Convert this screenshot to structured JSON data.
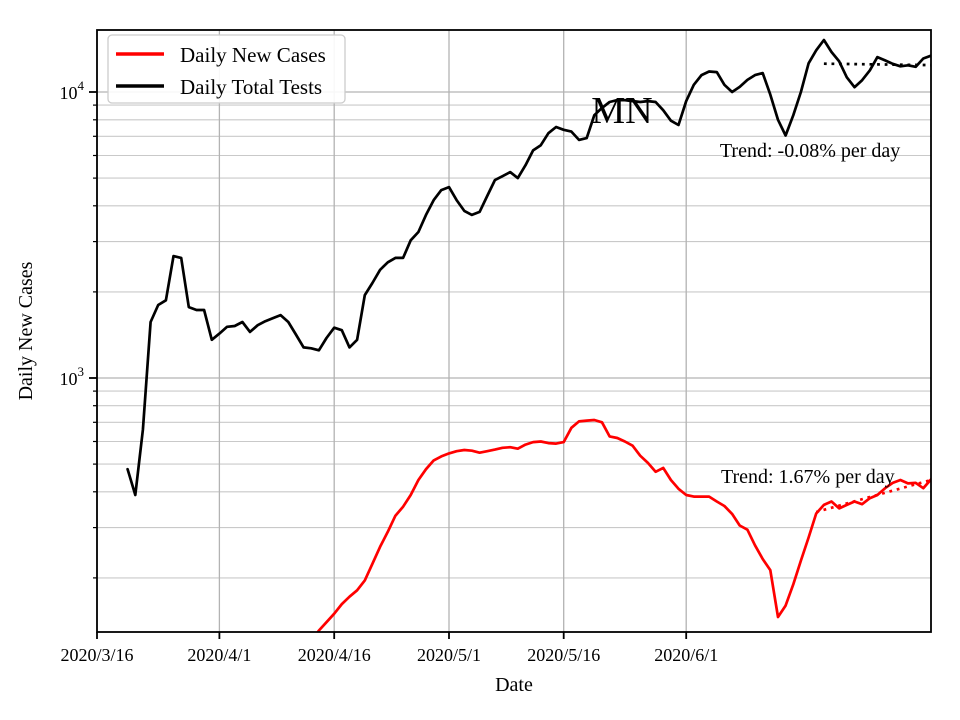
{
  "chart_data": {
    "type": "line",
    "title": "MN",
    "xlabel": "Date",
    "ylabel": "Daily New Cases",
    "yscale": "log",
    "xlim": [
      0,
      109
    ],
    "ylim": [
      129.4,
      16480
    ],
    "x_unit": "days since 2020/3/16",
    "grid": true,
    "legend": {
      "position": "upper-left",
      "entries": [
        {
          "label": "Daily New Cases",
          "color": "#ff0000"
        },
        {
          "label": "Daily Total Tests",
          "color": "#000000"
        }
      ]
    },
    "xticks": [
      {
        "day": 0,
        "label": "2020/3/16"
      },
      {
        "day": 16,
        "label": "2020/4/1"
      },
      {
        "day": 31,
        "label": "2020/4/16"
      },
      {
        "day": 46,
        "label": "2020/5/1"
      },
      {
        "day": 61,
        "label": "2020/5/16"
      },
      {
        "day": 77,
        "label": "2020/6/1"
      }
    ],
    "yticks_major": [
      {
        "value": 1000,
        "mantissa": "10",
        "exponent": "3"
      },
      {
        "value": 10000,
        "mantissa": "10",
        "exponent": "4"
      }
    ],
    "yticks_minor": [
      200,
      300,
      400,
      500,
      600,
      700,
      800,
      900,
      2000,
      3000,
      4000,
      5000,
      6000,
      7000,
      8000,
      9000
    ],
    "series": [
      {
        "name": "Daily Total Tests",
        "color": "#000000",
        "start_day": 4,
        "values": [
          480,
          390,
          660,
          1570,
          1800,
          1870,
          2670,
          2630,
          1770,
          1730,
          1730,
          1360,
          1430,
          1510,
          1520,
          1570,
          1450,
          1530,
          1580,
          1620,
          1660,
          1570,
          1420,
          1280,
          1270,
          1250,
          1380,
          1500,
          1470,
          1280,
          1360,
          1950,
          2150,
          2390,
          2540,
          2630,
          2630,
          3030,
          3240,
          3720,
          4190,
          4540,
          4650,
          4190,
          3840,
          3720,
          3810,
          4330,
          4920,
          5080,
          5250,
          5000,
          5550,
          6250,
          6520,
          7180,
          7550,
          7380,
          7270,
          6800,
          6900,
          8300,
          8800,
          9230,
          9370,
          9370,
          9300,
          9230,
          9300,
          9230,
          8640,
          7940,
          7670,
          9300,
          10600,
          11460,
          11800,
          11740,
          10600,
          10000,
          10420,
          11030,
          11460,
          11650,
          9800,
          8000,
          7050,
          8300,
          10000,
          12600,
          14000,
          15200,
          13800,
          12800,
          11260,
          10400,
          11000,
          11900,
          13250,
          12900,
          12550,
          12300,
          12400,
          12250,
          13100,
          13400
        ]
      },
      {
        "name": "Daily New Cases",
        "color": "#ff0000",
        "start_day": 28,
        "values": [
          120,
          131,
          140,
          150,
          162,
          172,
          181,
          196,
          224,
          257,
          290,
          330,
          355,
          390,
          440,
          480,
          515,
          532,
          545,
          555,
          560,
          557,
          548,
          555,
          562,
          570,
          573,
          566,
          585,
          597,
          600,
          592,
          590,
          597,
          670,
          705,
          710,
          713,
          700,
          625,
          617,
          600,
          580,
          535,
          505,
          470,
          485,
          440,
          410,
          390,
          385,
          385,
          385,
          370,
          357,
          335,
          305,
          295,
          260,
          233,
          213,
          146,
          160,
          190,
          230,
          277,
          336,
          360,
          370,
          350,
          360,
          370,
          362,
          380,
          390,
          412,
          430,
          440,
          428,
          430,
          412,
          442
        ]
      }
    ],
    "trend_lines": [
      {
        "series": "Daily Total Tests",
        "color": "#000000",
        "style": "dotted",
        "start_day": 95,
        "end_day": 109,
        "start_value": 12560,
        "end_value": 12420,
        "rate_label": "-0.08% per day"
      },
      {
        "series": "Daily New Cases",
        "color": "#ff0000",
        "style": "dotted",
        "start_day": 94,
        "end_day": 109,
        "start_value": 340,
        "end_value": 440,
        "rate_label": "1.67% per day"
      }
    ],
    "annotations": [
      {
        "text": "MN",
        "day": 68.6,
        "value": 8650,
        "font_size": 38,
        "name": "state-title"
      },
      {
        "text": "Trend: -0.08% per day",
        "day": 93.2,
        "value": 6270,
        "font_size": 20,
        "name": "tests-trend-label"
      },
      {
        "text": "Trend: 1.67% per day",
        "day": 92.9,
        "value": 454,
        "font_size": 20,
        "name": "cases-trend-label"
      }
    ],
    "colors": {
      "background": "#ffffff",
      "axis": "#000000",
      "grid_major": "#b3b3b3",
      "grid_minor": "#c9c9c9",
      "cases": "#ff0000",
      "tests": "#000000"
    }
  }
}
